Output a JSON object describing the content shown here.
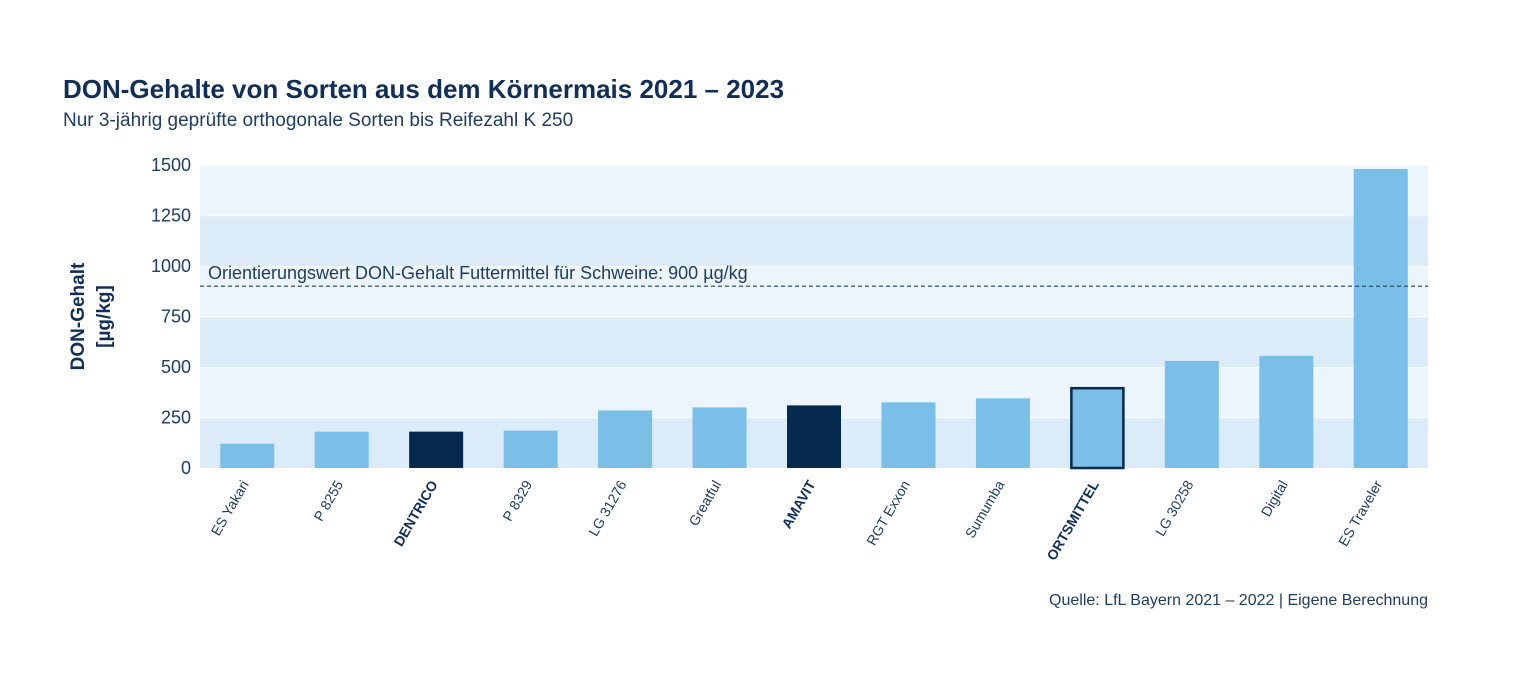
{
  "title": "DON-Gehalte von Sorten aus dem Körnermais 2021 – 2023",
  "subtitle": "Nur 3-jährig geprüfte orthogonale Sorten bis Reifezahl K 250",
  "source": "Quelle: LfL Bayern 2021 – 2022 | Eigene Berechnung",
  "colors": {
    "bar": "#79bfe8",
    "highlight": "#06294f",
    "band_light": "#edf5fc",
    "band_dark": "#dcebf8",
    "refline": "#1d3d66"
  },
  "chart_data": {
    "type": "bar",
    "ylabel_lines": [
      "DON-Gehalt",
      "[µg/kg]"
    ],
    "ylim": [
      0,
      1500
    ],
    "yticks": [
      "0",
      "250",
      "500",
      "750",
      "1000",
      "1250",
      "1500"
    ],
    "categories": [
      "ES Yakari",
      "P 8255",
      "DENTRICO",
      "P 8329",
      "LG 31276",
      "Greatful",
      "AMAVIT",
      "RGT Exxon",
      "Sumumba",
      "ORTSMITTEL",
      "LG 30258",
      "Digital",
      "ES Traveler"
    ],
    "values": [
      120,
      180,
      180,
      185,
      285,
      300,
      310,
      325,
      345,
      400,
      530,
      555,
      1480
    ],
    "bar_style": [
      "normal",
      "normal",
      "highlight",
      "normal",
      "normal",
      "normal",
      "highlight",
      "normal",
      "normal",
      "outlined",
      "normal",
      "normal",
      "normal"
    ],
    "bold_labels": [
      "DENTRICO",
      "AMAVIT",
      "ORTSMITTEL"
    ],
    "reference_line": {
      "value": 900,
      "label": "Orientierungswert DON-Gehalt Futtermittel für Schweine: 900 µg/kg"
    },
    "grid": "alternating horizontal bands",
    "legend": "none"
  }
}
